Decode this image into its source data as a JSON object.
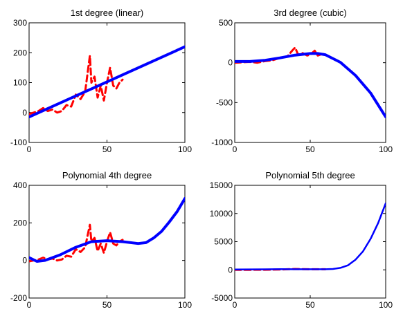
{
  "chart_data": [
    {
      "type": "line",
      "title": "1st degree (linear)",
      "xlim": [
        0,
        100
      ],
      "ylim": [
        -100,
        300
      ],
      "xticks": [
        "0",
        "50",
        "100"
      ],
      "yticks": [
        "-100",
        "0",
        "100",
        "200",
        "300"
      ],
      "grid": false,
      "series": [
        {
          "style": "dashed",
          "color": "#ff0000",
          "x": [
            0,
            3,
            6,
            9,
            12,
            15,
            18,
            21,
            24,
            27,
            30,
            33,
            36,
            38,
            39,
            40,
            42,
            44,
            46,
            48,
            50,
            52,
            54,
            56,
            58,
            60
          ],
          "y": [
            -5,
            0,
            5,
            15,
            5,
            10,
            0,
            5,
            25,
            20,
            60,
            45,
            70,
            150,
            190,
            100,
            120,
            50,
            90,
            40,
            100,
            150,
            90,
            80,
            100,
            110
          ]
        },
        {
          "style": "solid",
          "color": "#0000ff",
          "x": [
            0,
            100
          ],
          "y": [
            -15,
            220
          ]
        }
      ]
    },
    {
      "type": "line",
      "title": "3rd degree (cubic)",
      "xlim": [
        0,
        100
      ],
      "ylim": [
        -1000,
        500
      ],
      "xticks": [
        "0",
        "50",
        "100"
      ],
      "yticks": [
        "-1000",
        "-500",
        "0",
        "500"
      ],
      "grid": false,
      "series": [
        {
          "style": "dashed",
          "color": "#ff0000",
          "x": [
            0,
            5,
            10,
            15,
            20,
            25,
            30,
            35,
            38,
            40,
            42,
            45,
            48,
            50,
            53,
            55,
            58,
            60
          ],
          "y": [
            0,
            5,
            10,
            0,
            20,
            30,
            60,
            80,
            150,
            190,
            100,
            120,
            90,
            100,
            150,
            90,
            110,
            110
          ]
        },
        {
          "style": "solid",
          "color": "#0000ff",
          "x": [
            0,
            10,
            20,
            30,
            40,
            50,
            55,
            60,
            70,
            80,
            90,
            100
          ],
          "y": [
            15,
            15,
            30,
            60,
            95,
            115,
            115,
            100,
            5,
            -160,
            -380,
            -680
          ]
        }
      ]
    },
    {
      "type": "line",
      "title": "Polynomial 4th degree",
      "xlim": [
        0,
        100
      ],
      "ylim": [
        -200,
        400
      ],
      "xticks": [
        "0",
        "50",
        "100"
      ],
      "yticks": [
        "-200",
        "0",
        "200",
        "400"
      ],
      "grid": false,
      "series": [
        {
          "style": "dashed",
          "color": "#ff0000",
          "x": [
            0,
            3,
            6,
            9,
            12,
            15,
            18,
            21,
            24,
            27,
            30,
            33,
            36,
            38,
            39,
            40,
            42,
            44,
            46,
            48,
            50,
            52,
            54,
            56,
            58,
            60
          ],
          "y": [
            -5,
            0,
            5,
            15,
            5,
            10,
            0,
            5,
            25,
            20,
            60,
            45,
            70,
            150,
            190,
            100,
            120,
            50,
            90,
            40,
            100,
            150,
            90,
            80,
            100,
            110
          ]
        },
        {
          "style": "solid",
          "color": "#0000ff",
          "x": [
            0,
            5,
            10,
            20,
            30,
            40,
            50,
            60,
            70,
            75,
            80,
            85,
            90,
            95,
            100
          ],
          "y": [
            15,
            -5,
            0,
            30,
            70,
            100,
            105,
            100,
            90,
            95,
            120,
            155,
            205,
            260,
            330
          ]
        }
      ]
    },
    {
      "type": "line",
      "title": "Polynomial 5th degree",
      "xlim": [
        0,
        100
      ],
      "ylim": [
        -5000,
        15000
      ],
      "xticks": [
        "0",
        "50",
        "100"
      ],
      "yticks": [
        "-5000",
        "0",
        "5000",
        "10000",
        "15000"
      ],
      "grid": false,
      "series": [
        {
          "style": "dashed",
          "color": "#ff0000",
          "x": [
            0,
            10,
            20,
            30,
            40,
            50,
            60
          ],
          "y": [
            0,
            10,
            20,
            60,
            150,
            100,
            110
          ]
        },
        {
          "style": "solid",
          "color": "#0000ff",
          "x": [
            0,
            10,
            20,
            30,
            40,
            50,
            60,
            65,
            70,
            75,
            80,
            85,
            90,
            95,
            100
          ],
          "y": [
            50,
            80,
            90,
            120,
            110,
            100,
            100,
            150,
            350,
            800,
            1800,
            3300,
            5500,
            8300,
            11800
          ]
        }
      ]
    }
  ]
}
